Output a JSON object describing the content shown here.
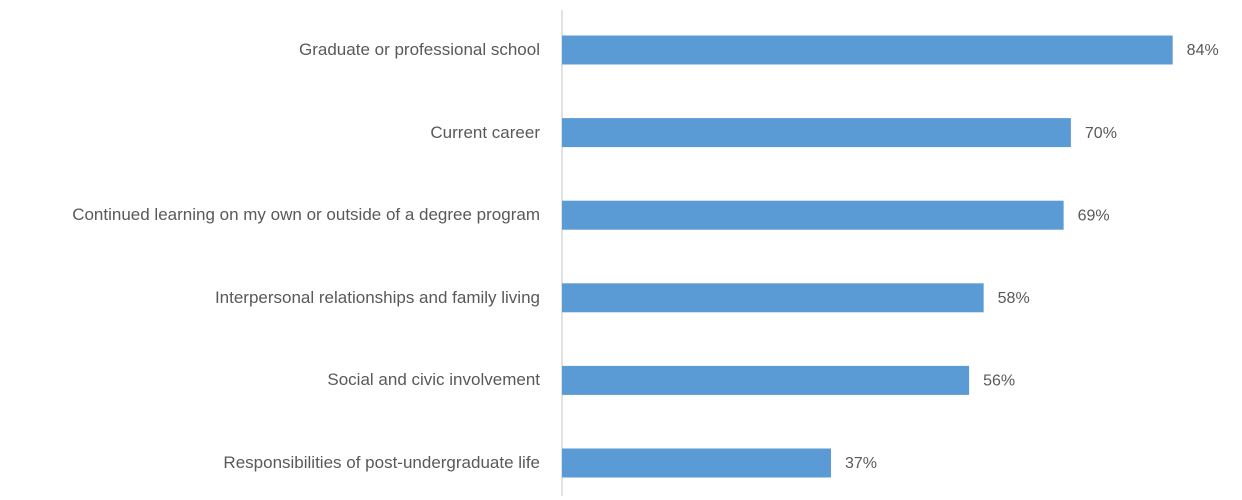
{
  "chart_data": {
    "type": "bar",
    "orientation": "horizontal",
    "categories": [
      "Graduate or professional school",
      "Current career",
      "Continued learning on my own or outside of a degree program",
      "Interpersonal relationships and family living",
      "Social and civic involvement",
      "Responsibilities of post-undergraduate life"
    ],
    "values": [
      84,
      70,
      69,
      58,
      56,
      37
    ],
    "value_labels": [
      "84%",
      "70%",
      "69%",
      "58%",
      "56%",
      "37%"
    ],
    "color": "#5b9bd5"
  }
}
